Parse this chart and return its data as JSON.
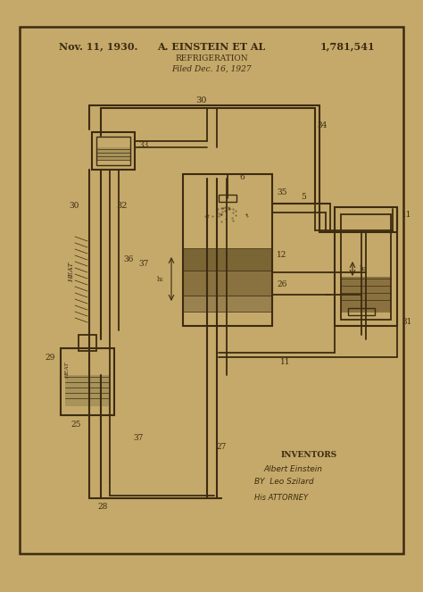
{
  "bg_color": "#c4a96a",
  "line_color": "#3d2b10",
  "text_color": "#3d2b10",
  "title_date": "Nov. 11, 1930.",
  "title_name": "A. EINSTEIN ET AL",
  "title_number": "1,781,541",
  "title_subject": "REFRIGERATION",
  "title_filed": "Filed Dec. 16, 1927",
  "inventors_text": "INVENTORS",
  "sig1": "Albert Einstein",
  "sig2": "Leo Szilard",
  "attorney_sig": "His ATTORNEY"
}
